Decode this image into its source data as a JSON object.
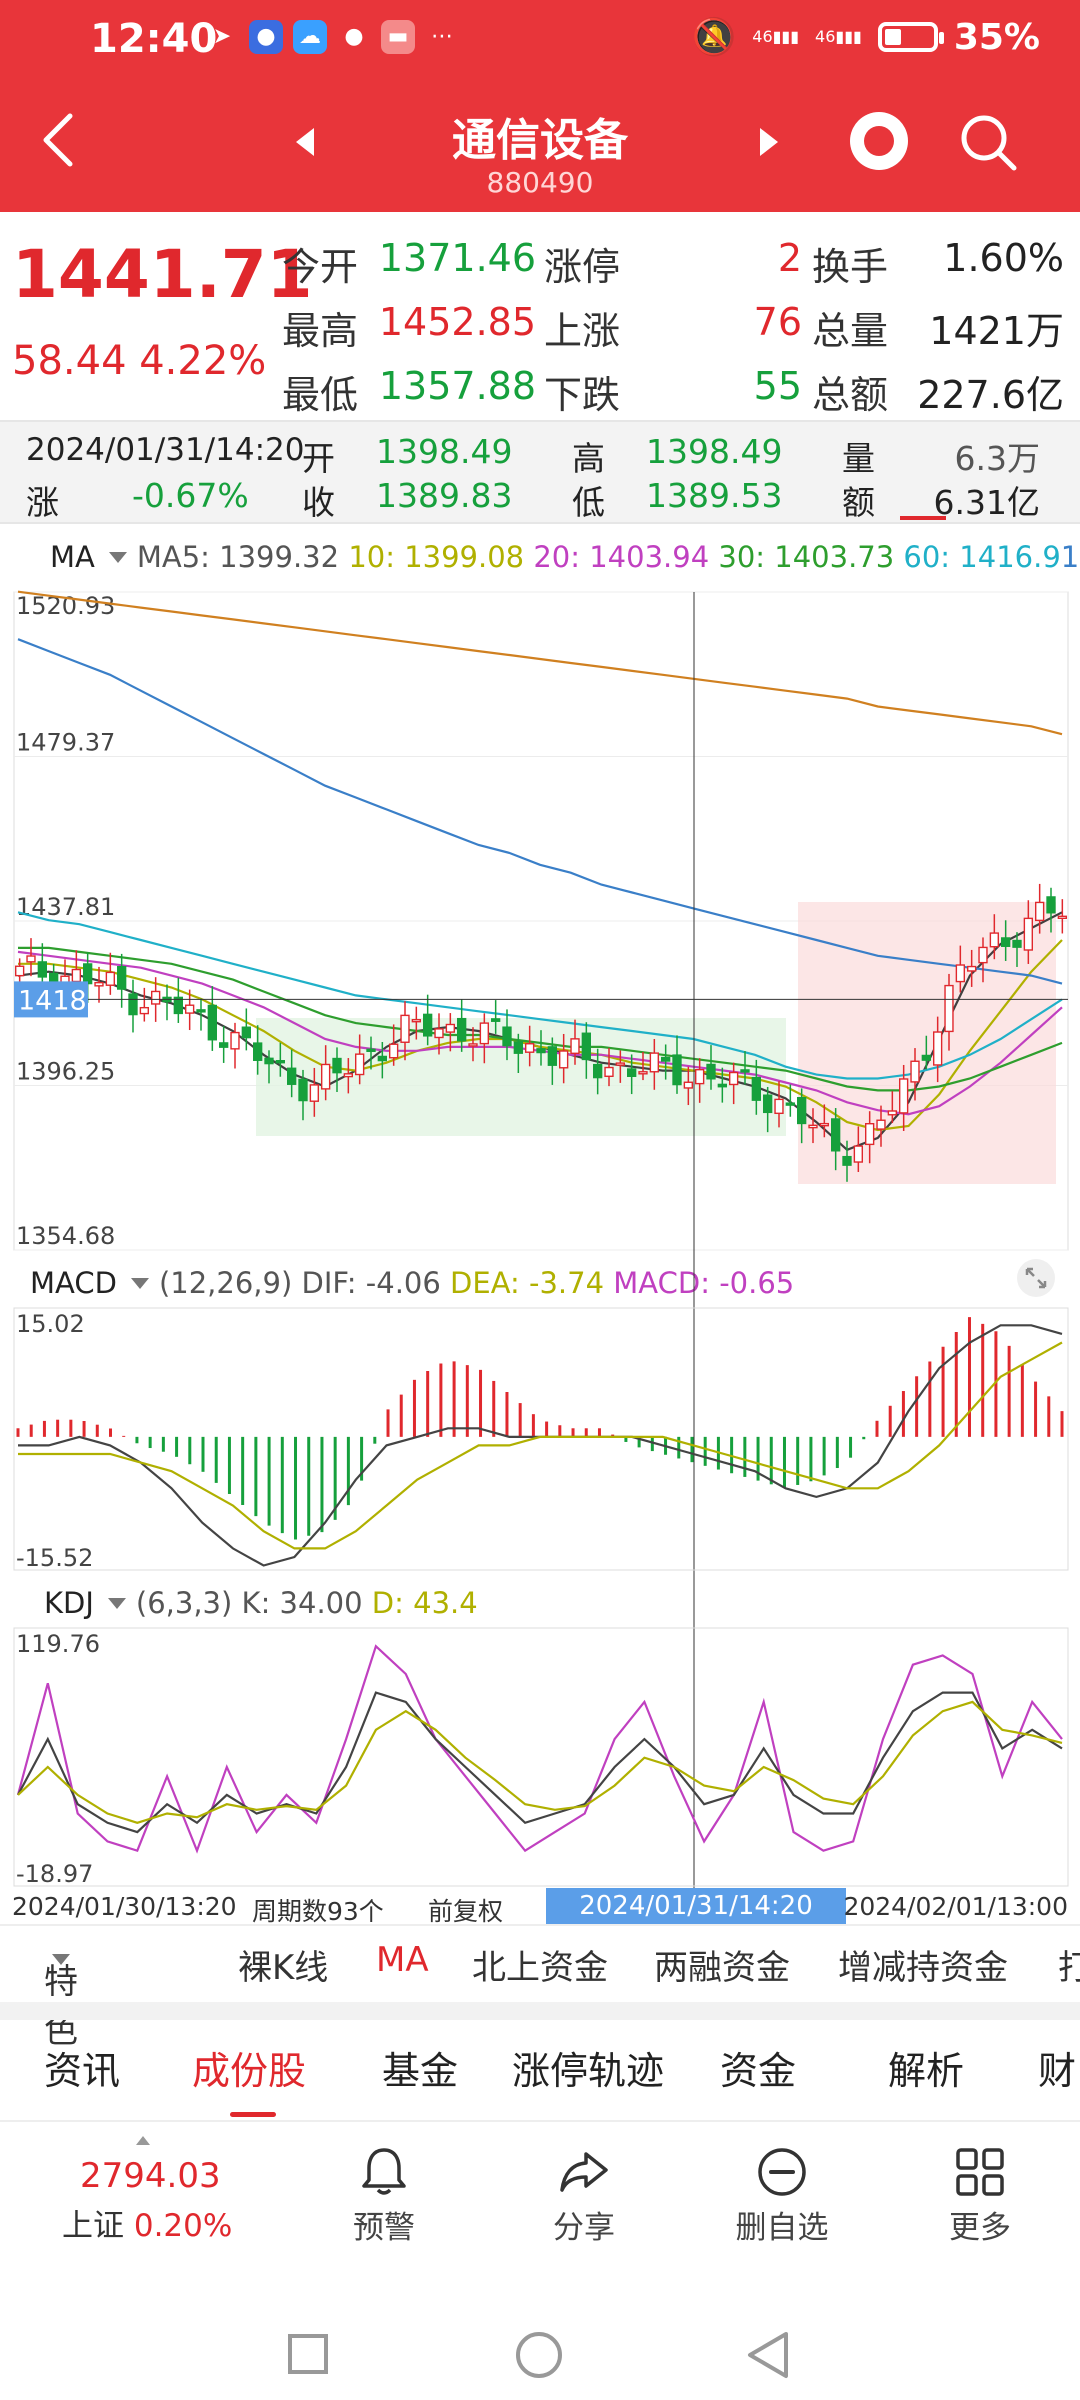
{
  "status": {
    "time": "12:40",
    "icons": [
      "telegram-icon",
      "bulb-app-icon",
      "weather-app-icon",
      "chat-icon",
      "huawei-app-icon",
      "more-dots-icon"
    ],
    "signal1": "46",
    "signal2": "46",
    "battery": "35%",
    "battery_level": 0.35
  },
  "header": {
    "title": "通信设备",
    "code": "880490"
  },
  "quote": {
    "price": "1441.71",
    "change_abs": "58.44",
    "change_pct": "4.22%",
    "rows": [
      {
        "l1": "今开",
        "v1": "1371.46",
        "c1": "green",
        "l2": "涨停",
        "v2": "2",
        "c2": "red",
        "l3": "换手",
        "v3": "1.60%"
      },
      {
        "l1": "最高",
        "v1": "1452.85",
        "c1": "red",
        "l2": "上涨",
        "v2": "76",
        "c2": "red",
        "l3": "总量",
        "v3": "1421万"
      },
      {
        "l1": "最低",
        "v1": "1357.88",
        "c1": "green",
        "l2": "下跌",
        "v2": "55",
        "c2": "green",
        "l3": "总额",
        "v3": "227.6亿"
      }
    ]
  },
  "ohlc": {
    "datetime": "2024/01/31/14:20",
    "change_label": "涨",
    "change": "-0.67%",
    "open_label": "开",
    "open": "1398.49",
    "close_label": "收",
    "close": "1389.83",
    "high_label": "高",
    "high": "1398.49",
    "low_label": "低",
    "low": "1389.53",
    "vol_label": "量",
    "vol": "6.3万",
    "amt_label": "额",
    "amt": "6.31亿"
  },
  "ma": {
    "name": "MA",
    "ma5": "MA5: 1399.32",
    "ma10": "10: 1399.08",
    "ma20": "20: 1403.94",
    "ma30": "30: 1403.73",
    "ma60": "60: 1416.9",
    "extra": "1",
    "y_ticks": [
      "1520.93",
      "1479.37",
      "1437.81",
      "1396.25",
      "1354.68"
    ],
    "crosshair_value": "1418"
  },
  "macd": {
    "name": "MACD",
    "params": "(12,26,9)",
    "dif": "DIF: -4.06",
    "dea": "DEA: -3.74",
    "macd": "MACD: -0.65",
    "y_top": "15.02",
    "y_bottom": "-15.52"
  },
  "kdj": {
    "name": "KDJ",
    "params": "(6,3,3)",
    "k": "K: 34.00",
    "d": "D: 43.4",
    "y_top": "119.76",
    "y_bottom": "-18.97"
  },
  "xaxis": {
    "start": "2024/01/30/13:20",
    "periods": "周期数93个",
    "adjust": "前复权",
    "cursor": "2024/01/31/14:20",
    "end": "2024/02/01/13:00"
  },
  "colors": {
    "red": "#e0282d",
    "green": "#16a03c",
    "ma5": "#404040",
    "ma10": "#b0b000",
    "ma20": "#c040c0",
    "ma30": "#2e9e2e",
    "ma60": "#20b0c8",
    "ma120": "#3a7fc8",
    "ma250": "#d08020"
  },
  "chart_data": [
    {
      "type": "candlestick",
      "y_ticks": [
        1520.93,
        1479.37,
        1437.81,
        1396.25,
        1354.68
      ],
      "ylim": [
        1354.68,
        1520.93
      ],
      "series": [
        {
          "name": "MA5",
          "values": [
            1424,
            1425,
            1424,
            1422,
            1419,
            1417,
            1414,
            1410,
            1404,
            1399,
            1396,
            1400,
            1406,
            1410,
            1411,
            1410,
            1408,
            1406,
            1404,
            1402,
            1401,
            1400,
            1400,
            1398,
            1396,
            1393,
            1387,
            1380,
            1383,
            1392,
            1408,
            1424,
            1432,
            1436,
            1440
          ]
        },
        {
          "name": "MA10",
          "values": [
            1427,
            1427,
            1426,
            1425,
            1423,
            1421,
            1418,
            1414,
            1410,
            1405,
            1401,
            1400,
            1402,
            1405,
            1407,
            1408,
            1408,
            1406,
            1405,
            1404,
            1402,
            1401,
            1400,
            1399,
            1398,
            1396,
            1392,
            1387,
            1385,
            1386,
            1394,
            1405,
            1415,
            1425,
            1433
          ]
        },
        {
          "name": "MA20",
          "values": [
            1430,
            1429,
            1428,
            1427,
            1426,
            1424,
            1422,
            1419,
            1416,
            1412,
            1408,
            1406,
            1405,
            1405,
            1406,
            1406,
            1406,
            1405,
            1404,
            1404,
            1403,
            1402,
            1401,
            1400,
            1399,
            1397,
            1395,
            1392,
            1390,
            1389,
            1391,
            1396,
            1402,
            1409,
            1416
          ]
        },
        {
          "name": "MA30",
          "values": [
            1431,
            1431,
            1430,
            1429,
            1428,
            1427,
            1425,
            1423,
            1420,
            1417,
            1414,
            1412,
            1411,
            1410,
            1409,
            1409,
            1408,
            1407,
            1406,
            1406,
            1405,
            1404,
            1403,
            1402,
            1401,
            1400,
            1398,
            1396,
            1395,
            1395,
            1396,
            1398,
            1401,
            1404,
            1407
          ]
        },
        {
          "name": "MA60",
          "values": [
            1440,
            1438,
            1437,
            1435,
            1433,
            1431,
            1429,
            1427,
            1425,
            1423,
            1421,
            1419,
            1418,
            1417,
            1416,
            1415,
            1414,
            1413,
            1412,
            1411,
            1410,
            1409,
            1408,
            1406,
            1404,
            1401,
            1399,
            1398,
            1398,
            1399,
            1401,
            1404,
            1408,
            1413,
            1418
          ]
        },
        {
          "name": "MA120",
          "values": [
            1509,
            1506,
            1503,
            1500,
            1496,
            1492,
            1488,
            1484,
            1480,
            1476,
            1472,
            1469,
            1466,
            1463,
            1460,
            1457,
            1455,
            1452,
            1450,
            1447,
            1445,
            1443,
            1441,
            1439,
            1437,
            1435,
            1433,
            1431,
            1429,
            1428,
            1427,
            1426,
            1425,
            1424,
            1422
          ]
        },
        {
          "name": "MA250",
          "values": [
            1521,
            1520,
            1519,
            1518,
            1517,
            1516,
            1515,
            1514,
            1513,
            1512,
            1511,
            1510,
            1509,
            1508,
            1507,
            1506,
            1505,
            1504,
            1503,
            1502,
            1501,
            1500,
            1499,
            1498,
            1497,
            1496,
            1495,
            1494,
            1492,
            1491,
            1490,
            1489,
            1488,
            1487,
            1485
          ]
        }
      ]
    },
    {
      "type": "bar",
      "ylim": [
        -15.52,
        15.02
      ],
      "series": [
        {
          "name": "MACD",
          "values": [
            1,
            2,
            2,
            1,
            -1,
            -2,
            -4,
            -7,
            -10,
            -12,
            -11,
            -7,
            3,
            7,
            9,
            8,
            5,
            2,
            1,
            1,
            -1,
            -2,
            -3,
            -4,
            -5,
            -6,
            -5,
            -3,
            2,
            6,
            10,
            14,
            12,
            7,
            3
          ]
        },
        {
          "name": "DIF",
          "values": [
            -1,
            -1,
            0,
            -1,
            -3,
            -6,
            -10,
            -13,
            -15,
            -14,
            -10,
            -5,
            -1,
            0,
            1,
            1,
            0,
            0,
            0,
            0,
            0,
            -1,
            -2,
            -3,
            -4,
            -6,
            -7,
            -6,
            -3,
            3,
            8,
            11,
            13,
            13,
            12
          ]
        },
        {
          "name": "DEA",
          "values": [
            -2,
            -2,
            -2,
            -2,
            -3,
            -4,
            -6,
            -8,
            -11,
            -13,
            -13,
            -11,
            -8,
            -5,
            -3,
            -1,
            -1,
            0,
            0,
            0,
            0,
            0,
            -1,
            -2,
            -3,
            -4,
            -5,
            -6,
            -6,
            -4,
            -1,
            3,
            7,
            9,
            11
          ]
        }
      ]
    },
    {
      "type": "line",
      "ylim": [
        -18.97,
        119.76
      ],
      "series": [
        {
          "name": "J",
          "values": [
            30,
            90,
            20,
            5,
            0,
            40,
            0,
            45,
            10,
            30,
            15,
            60,
            110,
            95,
            60,
            40,
            20,
            0,
            10,
            20,
            60,
            80,
            40,
            5,
            30,
            80,
            10,
            0,
            5,
            60,
            100,
            105,
            95,
            40,
            80,
            60
          ]
        },
        {
          "name": "K",
          "values": [
            30,
            60,
            25,
            15,
            10,
            25,
            15,
            30,
            20,
            25,
            20,
            45,
            85,
            80,
            60,
            45,
            30,
            15,
            20,
            25,
            45,
            60,
            45,
            25,
            30,
            55,
            30,
            20,
            20,
            50,
            75,
            85,
            85,
            55,
            65,
            55
          ]
        },
        {
          "name": "D",
          "values": [
            30,
            45,
            30,
            20,
            15,
            20,
            18,
            25,
            22,
            24,
            22,
            35,
            65,
            75,
            65,
            50,
            38,
            25,
            22,
            24,
            35,
            50,
            45,
            35,
            32,
            45,
            38,
            28,
            25,
            40,
            62,
            75,
            80,
            65,
            62,
            58
          ]
        }
      ]
    }
  ],
  "tabs1": [
    "特色",
    "裸K线",
    "MA",
    "北上资金",
    "两融资金",
    "增减持资金",
    "打"
  ],
  "tabs2": [
    "资讯",
    "成份股",
    "基金",
    "涨停轨迹",
    "资金",
    "解析",
    "财"
  ],
  "bottom": {
    "sh_value": "2794.03",
    "sh_label": "上证",
    "sh_pct": "0.20%",
    "alert": "预警",
    "share": "分享",
    "remove": "删自选",
    "more": "更多"
  }
}
